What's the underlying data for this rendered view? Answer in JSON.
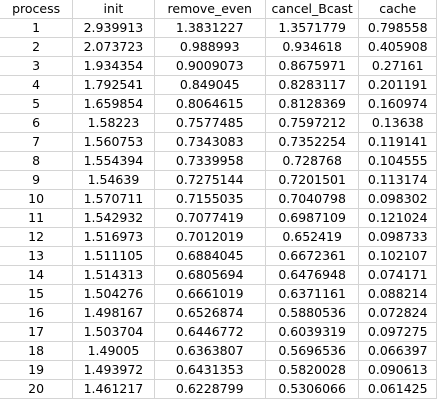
{
  "sheet": {
    "headers": [
      "process",
      "init",
      "remove_even",
      "cancel_Bcast",
      "cache"
    ],
    "rows": [
      [
        "1",
        "2.939913",
        "1.3831227",
        "1.3571779",
        "0.798558"
      ],
      [
        "2",
        "2.073723",
        "0.988993",
        "0.934618",
        "0.405908"
      ],
      [
        "3",
        "1.934354",
        "0.9009073",
        "0.8675971",
        "0.27161"
      ],
      [
        "4",
        "1.792541",
        "0.849045",
        "0.8283117",
        "0.201191"
      ],
      [
        "5",
        "1.659854",
        "0.8064615",
        "0.8128369",
        "0.160974"
      ],
      [
        "6",
        "1.58223",
        "0.7577485",
        "0.7597212",
        "0.13638"
      ],
      [
        "7",
        "1.560753",
        "0.7343083",
        "0.7352254",
        "0.119141"
      ],
      [
        "8",
        "1.554394",
        "0.7339958",
        "0.728768",
        "0.104555"
      ],
      [
        "9",
        "1.54639",
        "0.7275144",
        "0.7201501",
        "0.113174"
      ],
      [
        "10",
        "1.570711",
        "0.7155035",
        "0.7040798",
        "0.098302"
      ],
      [
        "11",
        "1.542932",
        "0.7077419",
        "0.6987109",
        "0.121024"
      ],
      [
        "12",
        "1.516973",
        "0.7012019",
        "0.652419",
        "0.098733"
      ],
      [
        "13",
        "1.511105",
        "0.6884045",
        "0.6672361",
        "0.102107"
      ],
      [
        "14",
        "1.514313",
        "0.6805694",
        "0.6476948",
        "0.074171"
      ],
      [
        "15",
        "1.504276",
        "0.6661019",
        "0.6371161",
        "0.088214"
      ],
      [
        "16",
        "1.498167",
        "0.6526874",
        "0.5880536",
        "0.072824"
      ],
      [
        "17",
        "1.503704",
        "0.6446772",
        "0.6039319",
        "0.097275"
      ],
      [
        "18",
        "1.49005",
        "0.6363807",
        "0.5696536",
        "0.066397"
      ],
      [
        "19",
        "1.493972",
        "0.6431353",
        "0.5820028",
        "0.090613"
      ],
      [
        "20",
        "1.461217",
        "0.6228799",
        "0.5306066",
        "0.061425"
      ]
    ]
  }
}
